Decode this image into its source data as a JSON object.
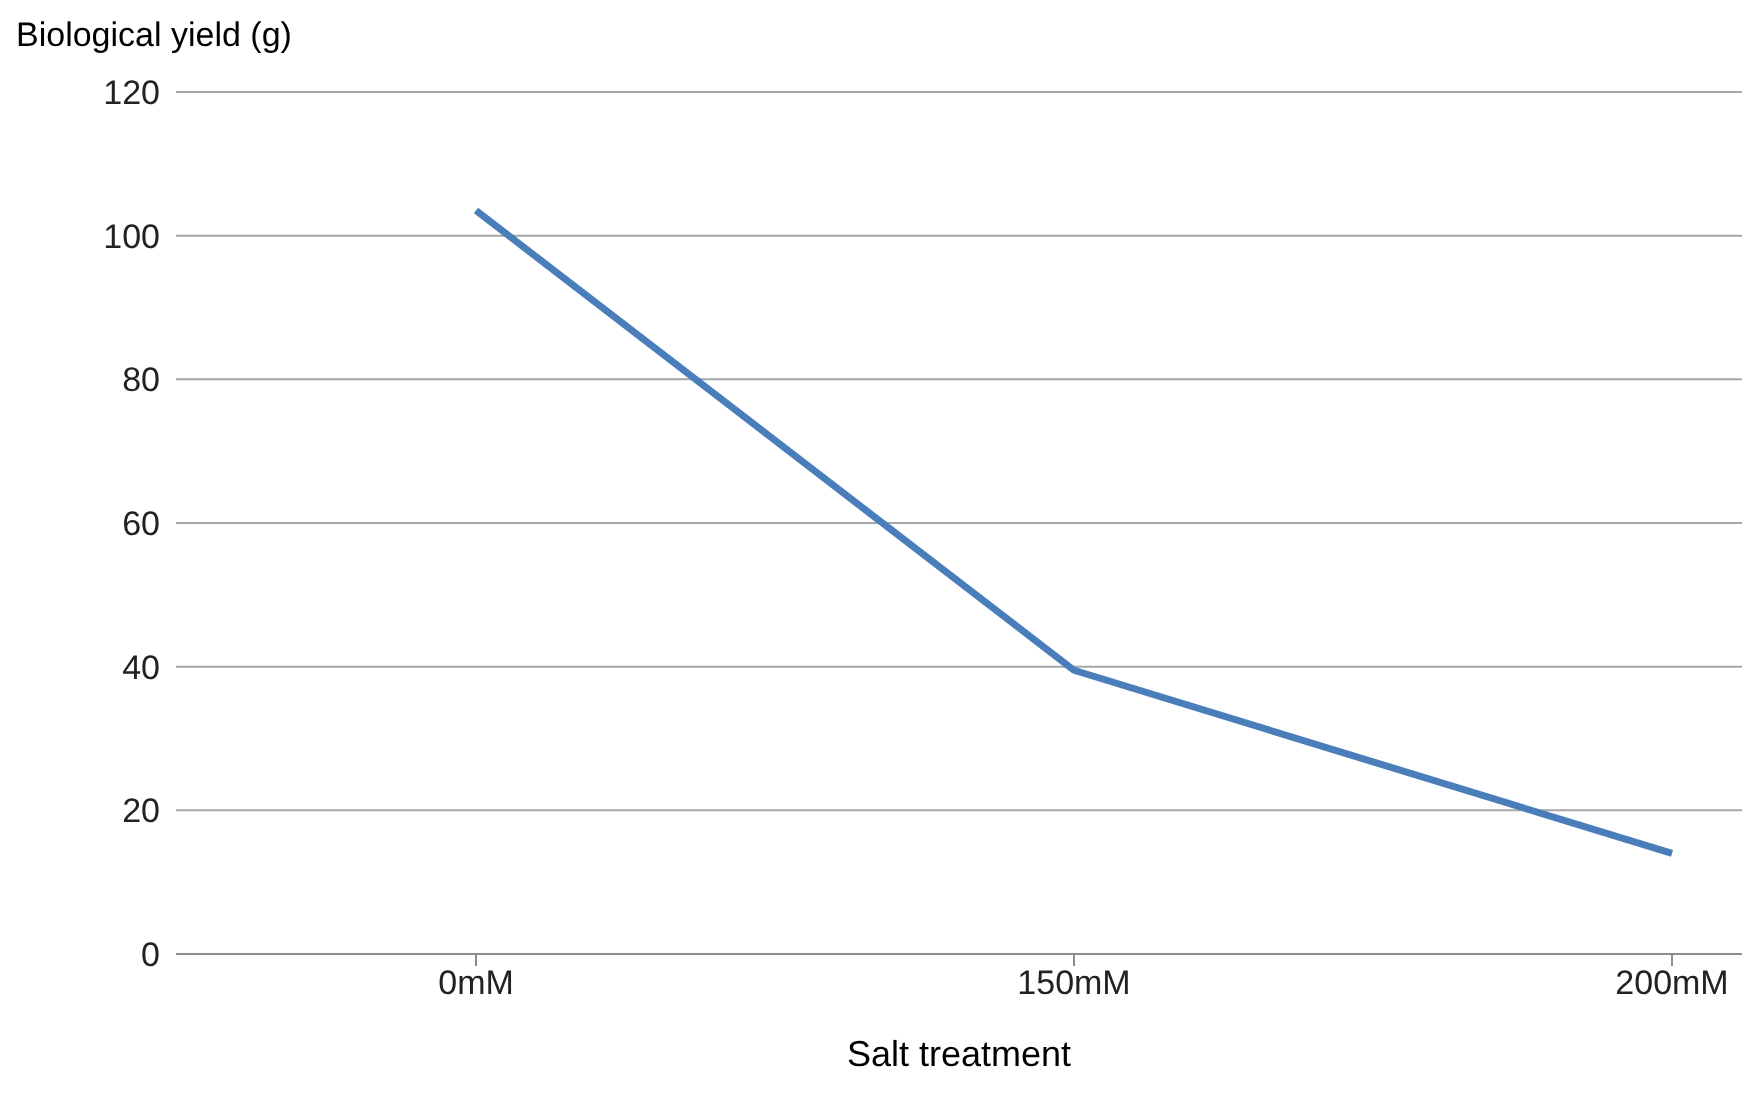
{
  "chart_data": {
    "type": "line",
    "ylabel": "Biological yield (g)",
    "xlabel": "Salt treatment",
    "categories": [
      "0mM",
      "150mM",
      "200mM"
    ],
    "series": [
      {
        "color": "#4a7ebb",
        "values": [
          103.5,
          39.5,
          14
        ]
      }
    ],
    "ylim": [
      0,
      120
    ],
    "yticks": [
      0,
      20,
      40,
      60,
      80,
      100,
      120
    ],
    "grid": "y",
    "marker": "none",
    "line_style": "solid",
    "legend": false
  }
}
